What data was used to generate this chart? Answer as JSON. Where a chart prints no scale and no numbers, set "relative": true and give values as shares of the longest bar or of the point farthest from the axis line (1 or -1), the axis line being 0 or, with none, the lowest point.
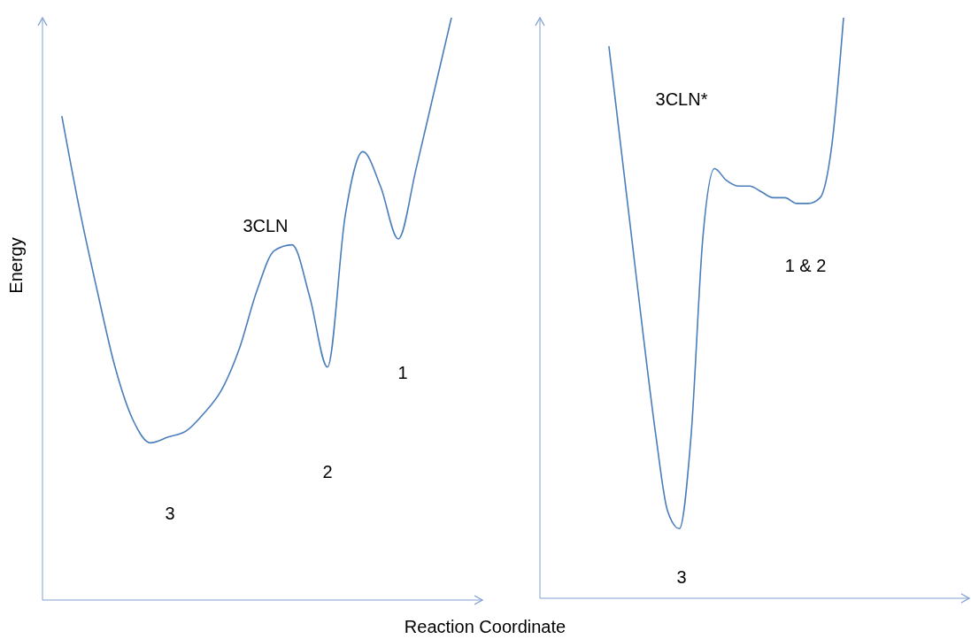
{
  "chart_data": [
    {
      "type": "line",
      "title": "3CLN",
      "xlabel": "Reaction Coordinate",
      "ylabel": "Energy",
      "relative": true,
      "categories": [
        null,
        null,
        null,
        null,
        null,
        null,
        null,
        null,
        null,
        null,
        null,
        null,
        null,
        null,
        null,
        null,
        null,
        null,
        null,
        null,
        null,
        null,
        null
      ],
      "series": [
        {
          "color": "#4a7ebb",
          "values": [
            0.83,
            0.67,
            0.53,
            0.4,
            0.31,
            0.27,
            0.28,
            0.29,
            0.32,
            0.36,
            0.43,
            0.53,
            0.6,
            0.61,
            0.52,
            0.4,
            0.66,
            0.77,
            0.71,
            0.62,
            0.74,
            0.87,
            1
          ]
        }
      ],
      "annotations": [
        "3",
        "2",
        "1"
      ]
    },
    {
      "type": "line",
      "title": "3CLN*",
      "relative": true,
      "categories": [
        null,
        null,
        null,
        null,
        null,
        null,
        null,
        null,
        null,
        null,
        null,
        null,
        null,
        null,
        null,
        null,
        null,
        null,
        null,
        null,
        null
      ],
      "series": [
        {
          "color": "#4a7ebb",
          "values": [
            0.95,
            0.78,
            0.61,
            0.44,
            0.28,
            0.15,
            0.12,
            0.28,
            0.62,
            0.74,
            0.72,
            0.71,
            0.71,
            0.7,
            0.69,
            0.69,
            0.68,
            0.68,
            0.69,
            0.78,
            1
          ]
        }
      ],
      "annotations": [
        "1 & 2",
        "3"
      ]
    }
  ]
}
